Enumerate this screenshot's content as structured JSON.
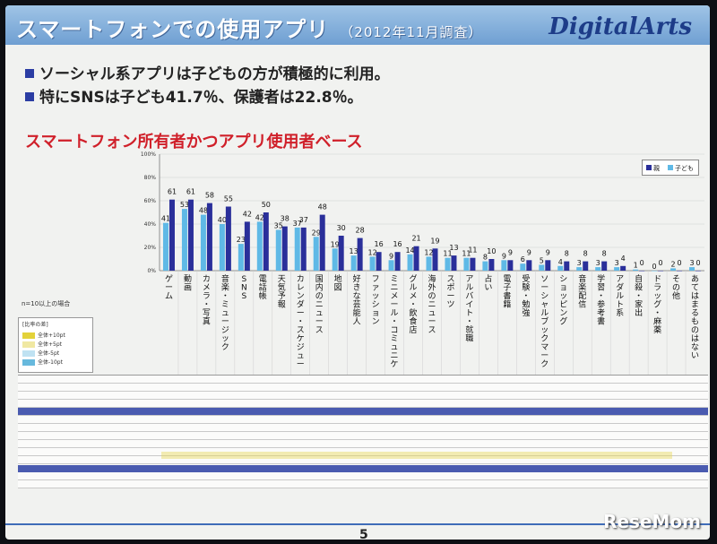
{
  "slide": {
    "title": "スマートフォンでの使用アプリ",
    "title_sub": "（2012年11月調査）",
    "logo": "DigitalArts",
    "bullets": [
      "ソーシャル系アプリは子どもの方が積極的に利用。",
      "特にSNSは子ども41.7％、保護者は22.8％。"
    ],
    "chart_heading": "スマートフォン所有者かつアプリ使用者ベース",
    "page_number": "5",
    "watermark": "ReseMom"
  },
  "colors": {
    "parent_series": "#5fb9e6",
    "child_series": "#2a2f9a",
    "title_bar": "#7aa8d8",
    "heading_red": "#d0202a"
  },
  "side_note": "n=10以上の場合",
  "side_legend": {
    "caption": "[比率の差]",
    "items": [
      "全体+10pt",
      "全体+5pt",
      "全体-5pt",
      "全体-10pt"
    ]
  },
  "chart_data": {
    "type": "bar",
    "ylim": [
      0,
      100
    ],
    "yticks": [
      "0%",
      "20%",
      "40%",
      "60%",
      "80%",
      "100%"
    ],
    "categories": [
      "ゲーム",
      "動画",
      "カメラ・写真",
      "音楽・ミュージック",
      "SNS",
      "電話帳",
      "天気予報",
      "カレンダー・スケジュール",
      "国内のニュース",
      "地図",
      "好きな芸能人",
      "ファッション",
      "ミニメール・コミュニケーション",
      "グルメ・飲食店",
      "海外のニュース",
      "スポーツ",
      "アルバイト・就職",
      "占い",
      "電子書籍",
      "受験・勉強",
      "ソーシャルブックマーク",
      "ショッピング",
      "音楽配信",
      "学習・参考書",
      "アダルト系",
      "自殺・家出",
      "ドラッグ・麻薬",
      "その他",
      "あてはまるものはない"
    ],
    "series": [
      {
        "name": "親",
        "values": [
          41,
          53,
          48,
          40,
          23,
          42,
          35,
          37,
          29,
          19,
          13,
          12,
          9,
          14,
          12,
          11,
          11,
          8,
          9,
          6,
          5,
          4,
          3,
          3,
          3,
          1,
          0,
          2,
          3
        ]
      },
      {
        "name": "子ども",
        "values": [
          61,
          61,
          58,
          55,
          42,
          50,
          38,
          37,
          48,
          30,
          28,
          16,
          16,
          21,
          19,
          13,
          11,
          10,
          9,
          9,
          9,
          8,
          8,
          8,
          4,
          0,
          0,
          0,
          0
        ]
      }
    ],
    "labels": {
      "parent": [
        "41",
        "53",
        "48",
        "40",
        "23",
        "42",
        "35",
        "37",
        "29",
        "19",
        "13",
        "12",
        "9",
        "14",
        "12",
        "11",
        "11",
        "8",
        "9",
        "6",
        "5",
        "4",
        "3",
        "3",
        "3",
        "1",
        "0",
        "2",
        "3"
      ],
      "child": [
        "61",
        "61",
        "58",
        "55",
        "42",
        "50",
        "38",
        "37",
        "48",
        "30",
        "28",
        "16",
        "16",
        "21",
        "19",
        "13",
        "11",
        "10",
        "9",
        "9",
        "9",
        "8",
        "8",
        "8",
        "4",
        "0",
        "0",
        "0",
        "0"
      ]
    }
  }
}
